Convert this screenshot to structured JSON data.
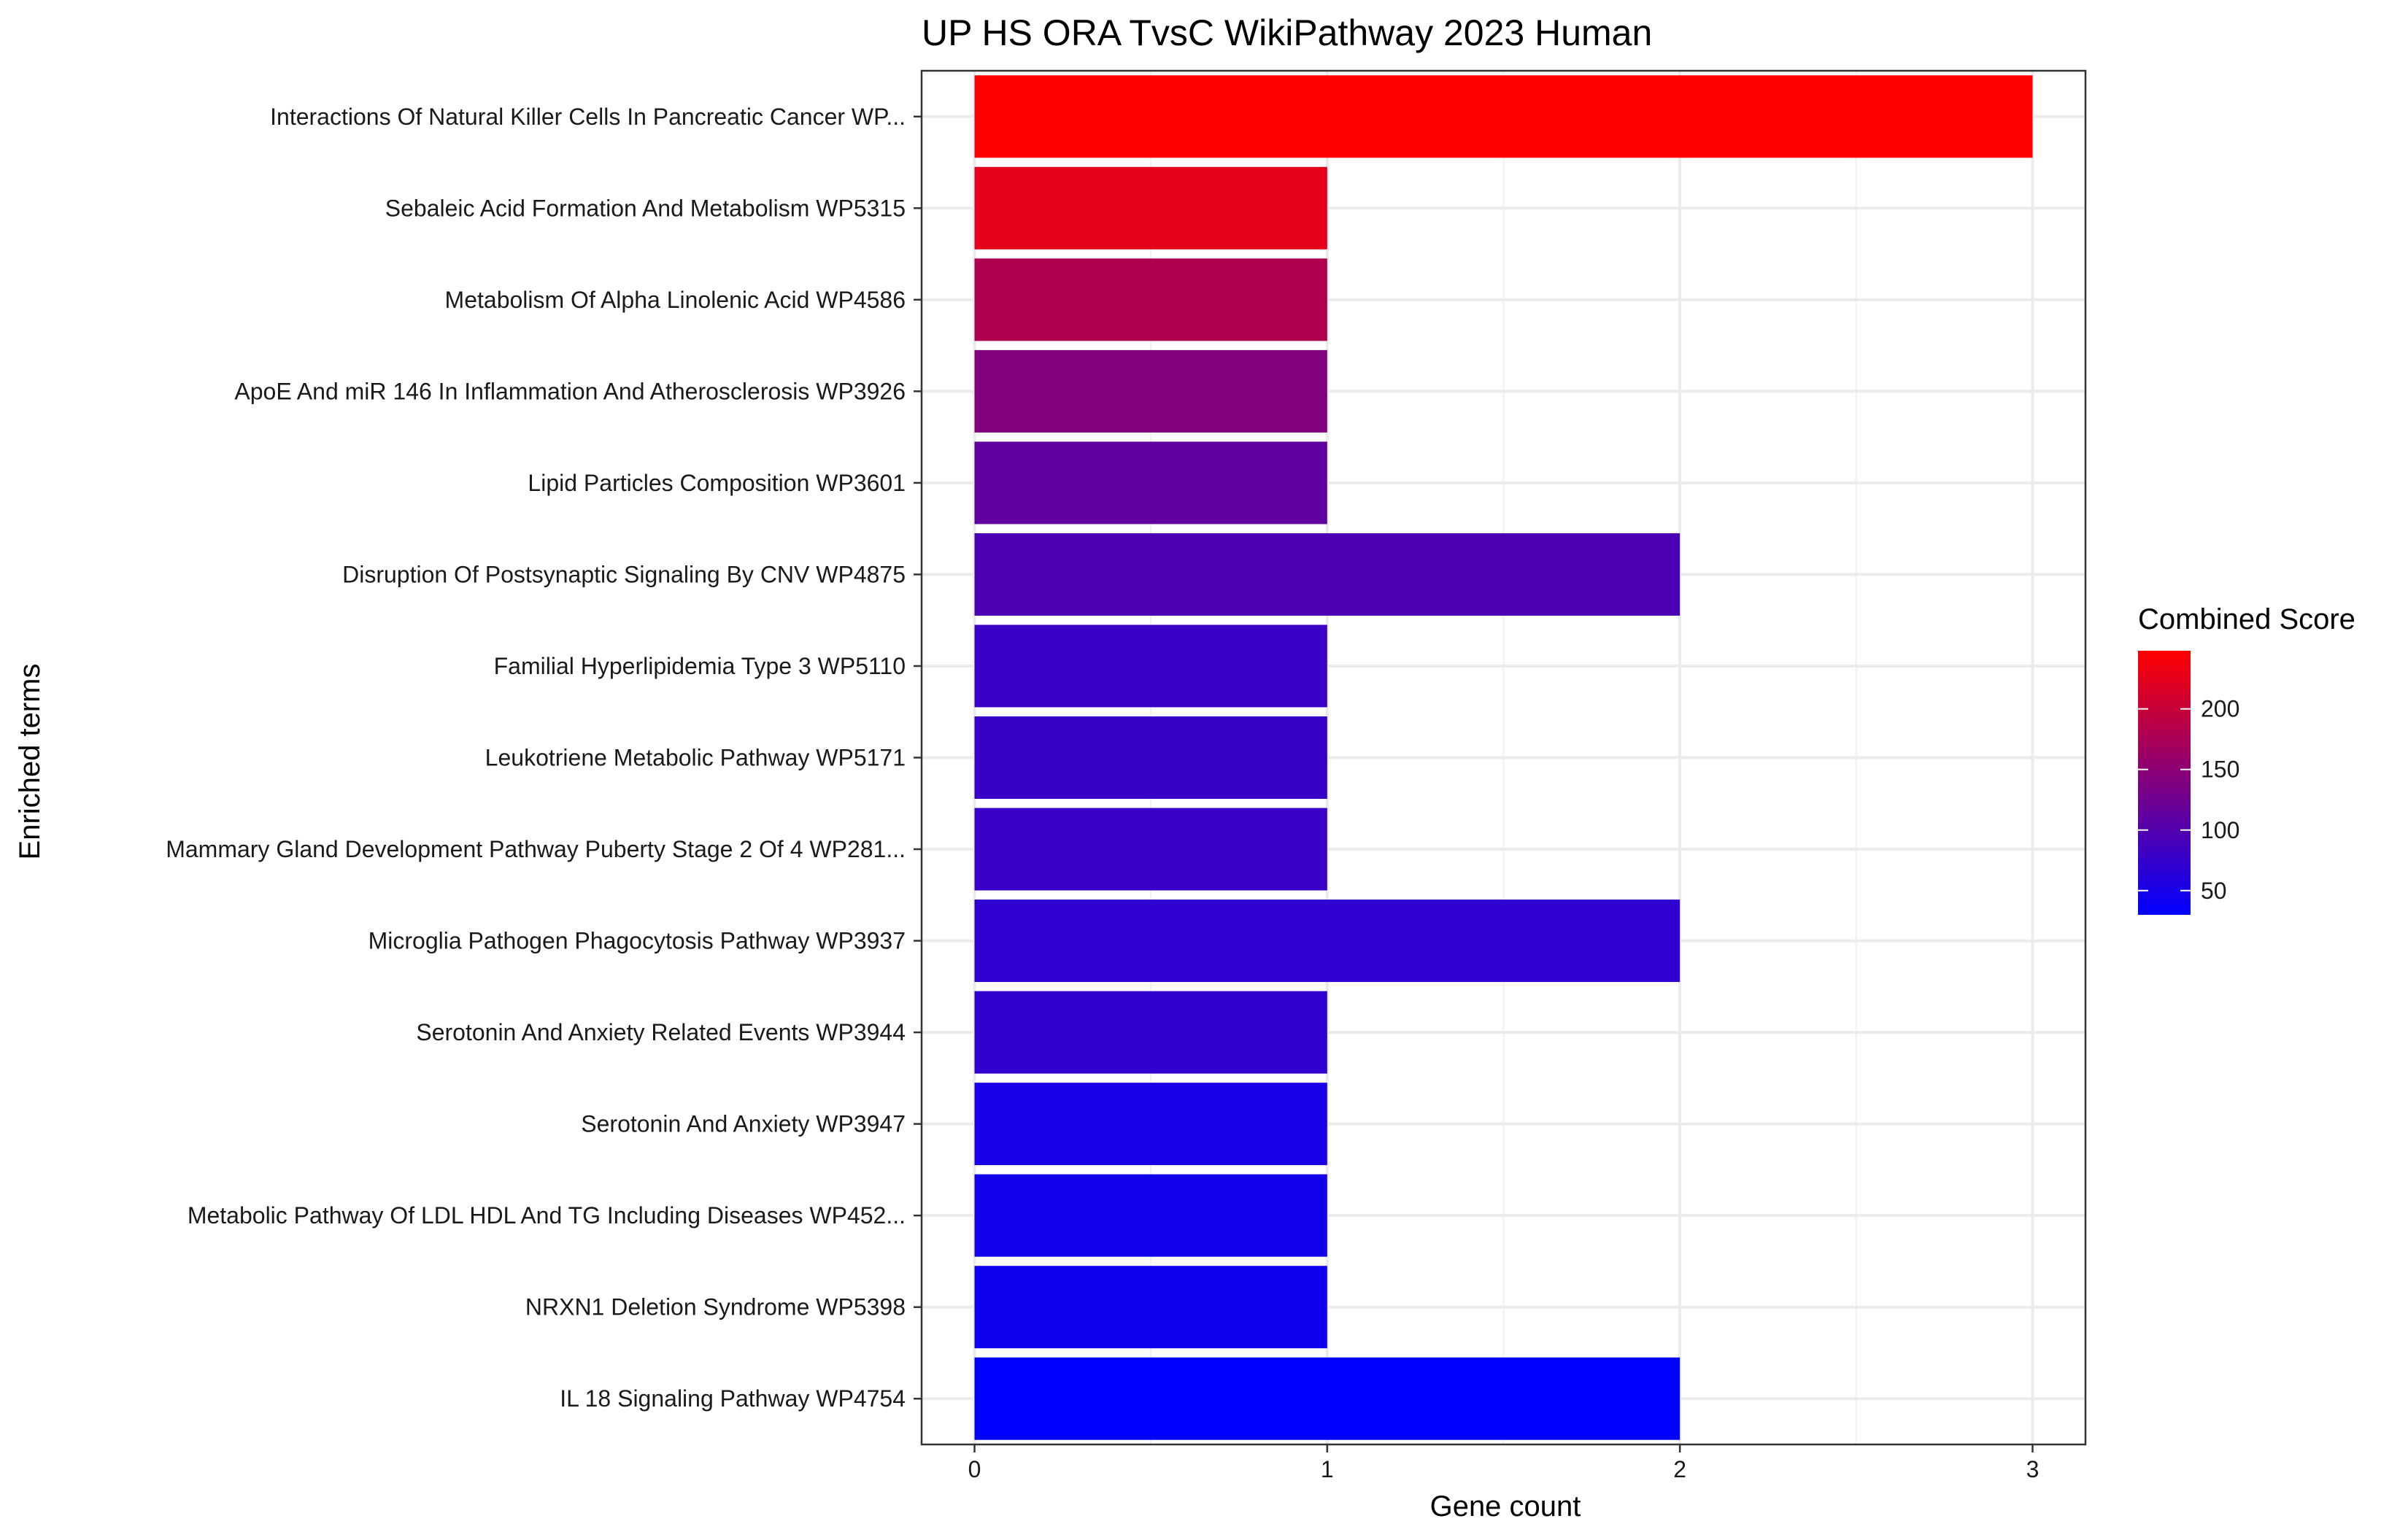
{
  "chart_data": {
    "type": "bar",
    "orientation": "horizontal",
    "title": "UP HS ORA TvsC WikiPathway 2023 Human",
    "xlabel": "Gene count",
    "ylabel": "Enriched terms",
    "xlim": [
      -0.15,
      3.15
    ],
    "xticks": [
      0,
      1,
      2,
      3
    ],
    "grid": true,
    "categories": [
      "Interactions Of Natural Killer Cells In Pancreatic Cancer WP...",
      "Sebaleic Acid Formation And Metabolism WP5315",
      "Metabolism Of Alpha Linolenic Acid WP4586",
      "ApoE And miR 146 In Inflammation And Atherosclerosis WP3926",
      "Lipid Particles Composition WP3601",
      "Disruption Of Postsynaptic Signaling By CNV WP4875",
      "Familial Hyperlipidemia Type 3 WP5110",
      "Leukotriene Metabolic Pathway WP5171",
      "Mammary Gland Development Pathway Puberty Stage 2 Of 4 WP281...",
      "Microglia Pathogen Phagocytosis Pathway WP3937",
      "Serotonin And Anxiety Related Events WP3944",
      "Serotonin And Anxiety WP3947",
      "Metabolic Pathway Of LDL HDL And TG Including Diseases WP452...",
      "NRXN1 Deletion Syndrome WP5398",
      "IL 18 Signaling Pathway WP4754"
    ],
    "values": [
      3,
      1,
      1,
      1,
      1,
      2,
      1,
      1,
      1,
      2,
      1,
      1,
      1,
      1,
      2
    ],
    "combined_scores": [
      248,
      225,
      180,
      140,
      112,
      95,
      80,
      78,
      80,
      70,
      72,
      50,
      45,
      44,
      30
    ],
    "color_scale": {
      "title": "Combined Score",
      "low_color": "#0000ff",
      "high_color": "#ff0000",
      "range": [
        30,
        248
      ],
      "ticks": [
        50,
        100,
        150,
        200
      ]
    }
  }
}
